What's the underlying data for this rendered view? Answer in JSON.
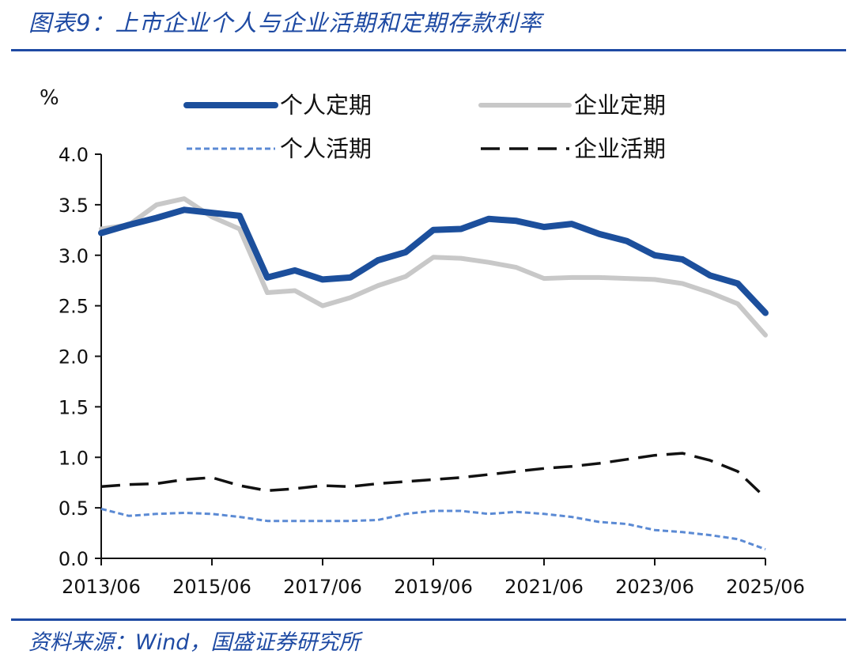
{
  "header": {
    "title": "图表9：上市企业个人与企业活期和定期存款利率"
  },
  "footer": {
    "source": "资料来源：Wind，国盛证券研究所"
  },
  "colors": {
    "brand": "#1e4aa3",
    "personal_fixed": "#1c4f9c",
    "corporate_fixed": "#c8c8c8",
    "personal_demand": "#5b8ad4",
    "corporate_demand": "#111111"
  },
  "chart_data": {
    "type": "line",
    "ylabel": "%",
    "ylim": [
      0,
      4
    ],
    "yticks": [
      0,
      0.5,
      1.0,
      1.5,
      2.0,
      2.5,
      3.0,
      3.5,
      4.0
    ],
    "ytick_labels": [
      "0.0",
      "0.5",
      "1.0",
      "1.5",
      "2.0",
      "2.5",
      "3.0",
      "3.5",
      "4.0"
    ],
    "xticks": [
      "2013/06",
      "2015/06",
      "2017/06",
      "2019/06",
      "2021/06",
      "2023/06",
      "2025/06"
    ],
    "xlim": [
      "2013/06",
      "2025/06"
    ],
    "legend_position": "top",
    "x": [
      "2013/06",
      "2013/12",
      "2014/06",
      "2014/12",
      "2015/06",
      "2015/12",
      "2016/06",
      "2016/12",
      "2017/06",
      "2017/12",
      "2018/06",
      "2018/12",
      "2019/06",
      "2019/12",
      "2020/06",
      "2020/12",
      "2021/06",
      "2021/12",
      "2022/06",
      "2022/12",
      "2023/06",
      "2023/12",
      "2024/06",
      "2024/12",
      "2025/06"
    ],
    "series": [
      {
        "name": "个人定期",
        "style": "solid-thick",
        "values": [
          3.22,
          3.3,
          3.37,
          3.45,
          3.42,
          3.39,
          2.78,
          2.85,
          2.76,
          2.78,
          2.95,
          3.03,
          3.25,
          3.26,
          3.36,
          3.34,
          3.28,
          3.31,
          3.21,
          3.14,
          3.0,
          2.96,
          2.8,
          2.72,
          2.43
        ]
      },
      {
        "name": "企业定期",
        "style": "solid",
        "values": [
          3.26,
          3.3,
          3.5,
          3.56,
          3.38,
          3.26,
          2.63,
          2.65,
          2.5,
          2.58,
          2.7,
          2.79,
          2.98,
          2.97,
          2.93,
          2.88,
          2.77,
          2.78,
          2.78,
          2.77,
          2.76,
          2.72,
          2.63,
          2.52,
          2.21
        ]
      },
      {
        "name": "个人活期",
        "style": "dotted",
        "values": [
          0.49,
          0.42,
          0.44,
          0.45,
          0.44,
          0.41,
          0.37,
          0.37,
          0.37,
          0.37,
          0.38,
          0.44,
          0.47,
          0.47,
          0.44,
          0.46,
          0.44,
          0.41,
          0.36,
          0.34,
          0.28,
          0.26,
          0.23,
          0.19,
          0.09
        ]
      },
      {
        "name": "企业活期",
        "style": "dashed",
        "values": [
          0.71,
          0.73,
          0.74,
          0.78,
          0.8,
          0.72,
          0.67,
          0.69,
          0.72,
          0.71,
          0.74,
          0.76,
          0.78,
          0.8,
          0.83,
          0.86,
          0.89,
          0.91,
          0.94,
          0.98,
          1.02,
          1.04,
          0.97,
          0.86,
          0.6
        ]
      }
    ]
  }
}
